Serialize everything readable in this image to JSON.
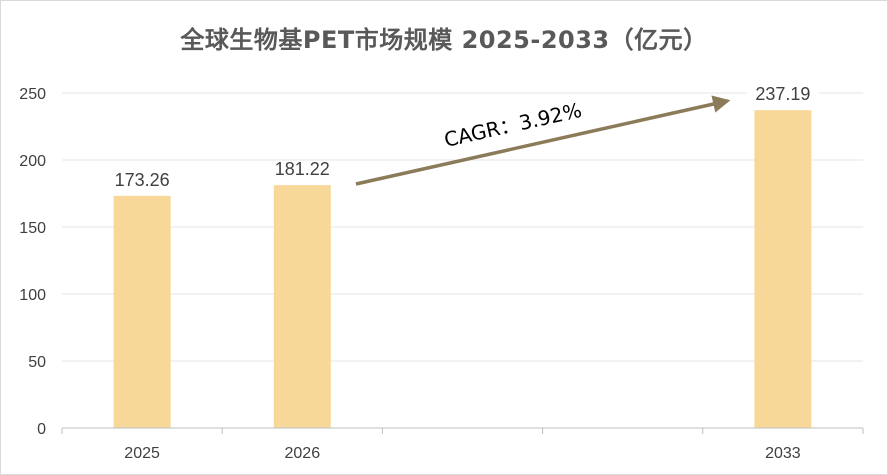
{
  "chart_data": {
    "type": "bar",
    "title": "全球生物基PET市场规模 2025-2033（亿元）",
    "slots": [
      "2025",
      "2026",
      "",
      "",
      "2033"
    ],
    "categories": [
      "2025",
      "2026",
      "2033"
    ],
    "values": [
      173.26,
      181.22,
      237.19
    ],
    "data_labels": [
      "173.26",
      "181.22",
      "237.19"
    ],
    "ylim": [
      0,
      250
    ],
    "yticks": [
      0,
      50,
      100,
      150,
      200,
      250
    ],
    "grid": true,
    "bar_color": "#f8d898",
    "annotation": {
      "text": "CAGR：3.92%",
      "arrow_color": "#8b7b58"
    }
  }
}
